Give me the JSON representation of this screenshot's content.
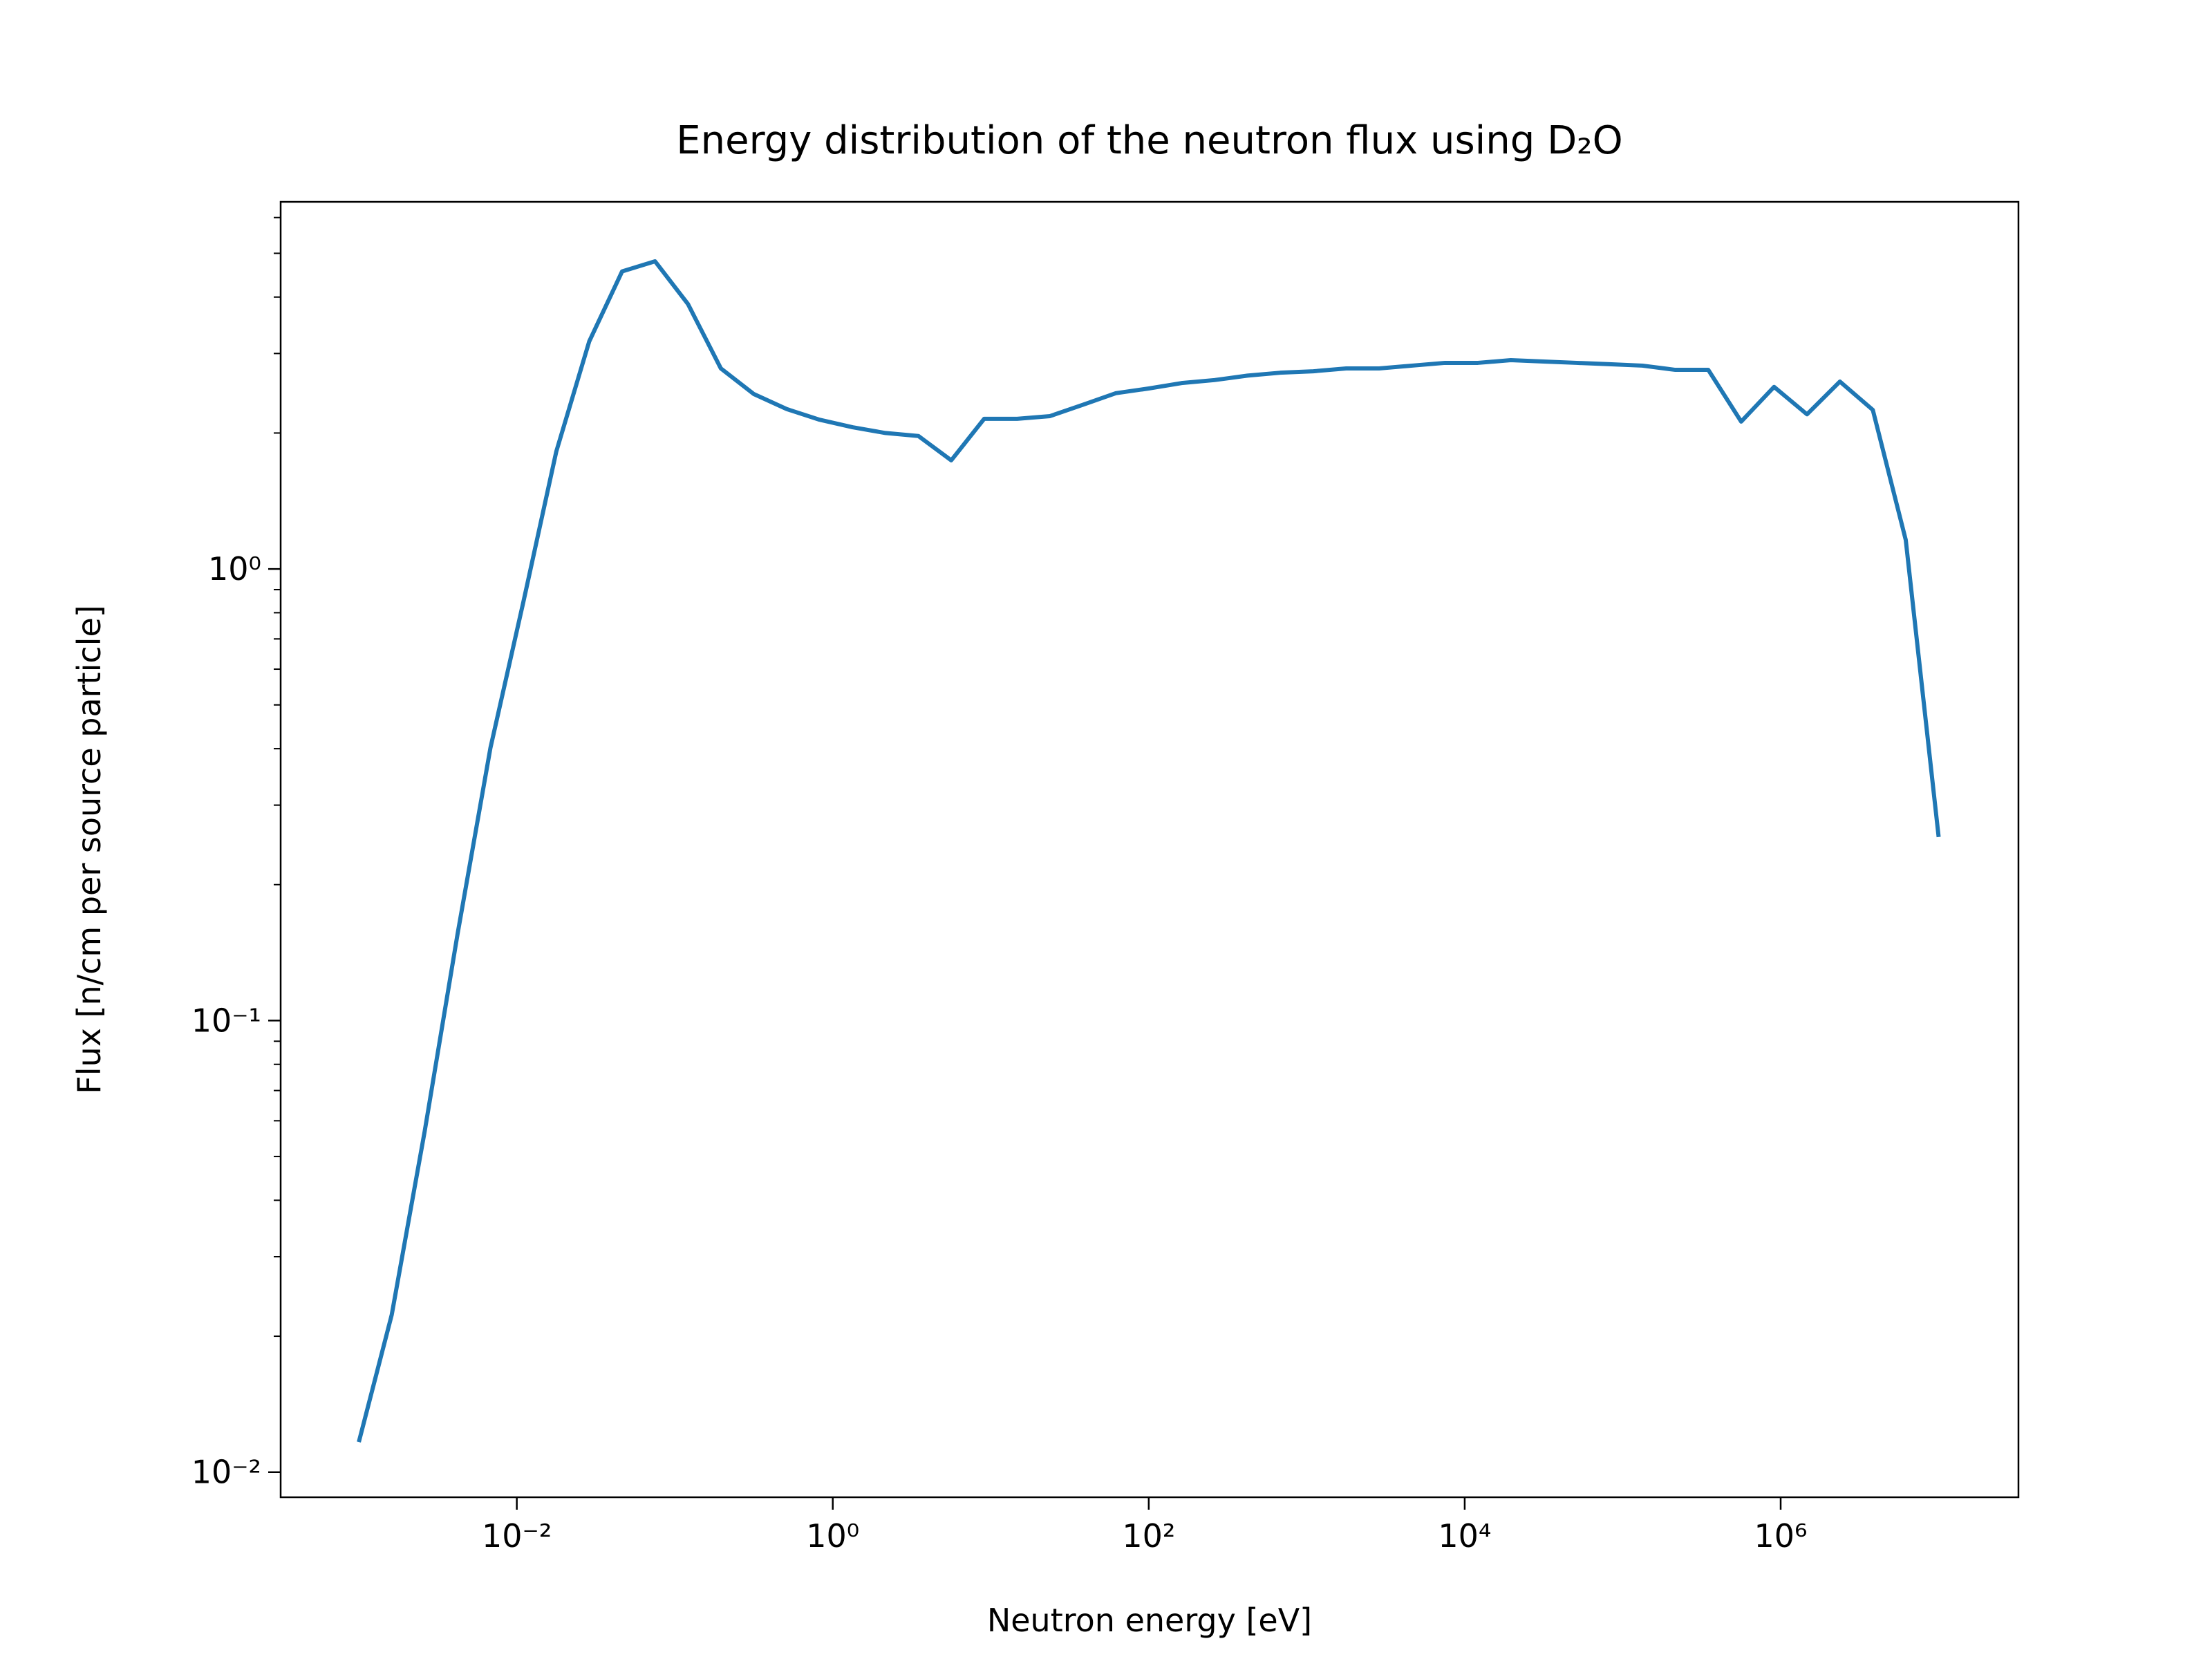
{
  "chart_data": {
    "type": "line",
    "title": "Energy distribution of the neutron flux using D₂O",
    "xlabel": "Neutron energy [eV]",
    "ylabel": "Flux [n/cm per source particle]",
    "xscale": "log",
    "yscale": "log",
    "x": [
      0.001,
      0.001615,
      0.00261,
      0.004217,
      0.006813,
      0.01101,
      0.01778,
      0.02873,
      0.04642,
      0.07499,
      0.1212,
      0.1957,
      0.3162,
      0.5109,
      0.8254,
      1.334,
      2.154,
      3.481,
      5.623,
      9.085,
      14.68,
      23.71,
      38.31,
      61.9,
      100,
      161.5,
      261,
      421.7,
      681.3,
      1101,
      1778,
      2873,
      4642,
      7499,
      12115,
      19573,
      31623,
      51089,
      82540,
      133352,
      215443,
      348070,
      562341,
      908518,
      1467799,
      2371374,
      3831187,
      6189658,
      10000000
    ],
    "series": [
      {
        "name": "Flux",
        "color": "#1f77b4",
        "values": [
          0.01166,
          0.0223,
          0.0568,
          0.1555,
          0.402,
          0.846,
          1.82,
          3.19,
          4.56,
          4.8,
          3.86,
          2.78,
          2.44,
          2.26,
          2.14,
          2.06,
          2.0,
          1.97,
          1.74,
          2.15,
          2.15,
          2.18,
          2.31,
          2.45,
          2.51,
          2.58,
          2.62,
          2.68,
          2.72,
          2.74,
          2.78,
          2.78,
          2.82,
          2.86,
          2.86,
          2.9,
          2.88,
          2.86,
          2.84,
          2.82,
          2.76,
          2.76,
          2.12,
          2.53,
          2.2,
          2.6,
          2.25,
          1.16,
          0.255
        ]
      }
    ],
    "xlim": [
      0.00032,
      32000000
    ],
    "ylim": [
      0.0088,
      6.5
    ],
    "xticks": [
      {
        "value": 0.01,
        "label": "10⁻²"
      },
      {
        "value": 1,
        "label": "10⁰"
      },
      {
        "value": 100,
        "label": "10²"
      },
      {
        "value": 10000,
        "label": "10⁴"
      },
      {
        "value": 1000000,
        "label": "10⁶"
      }
    ],
    "yticks": [
      {
        "value": 0.01,
        "label": "10⁻²"
      },
      {
        "value": 0.1,
        "label": "10⁻¹"
      },
      {
        "value": 1,
        "label": "10⁰"
      }
    ],
    "yminorticks": [
      0.02,
      0.03,
      0.04,
      0.05,
      0.06,
      0.07,
      0.08,
      0.09,
      0.2,
      0.3,
      0.4,
      0.5,
      0.6,
      0.7,
      0.8,
      0.9,
      2,
      3,
      4,
      5,
      6
    ],
    "grid": false
  }
}
